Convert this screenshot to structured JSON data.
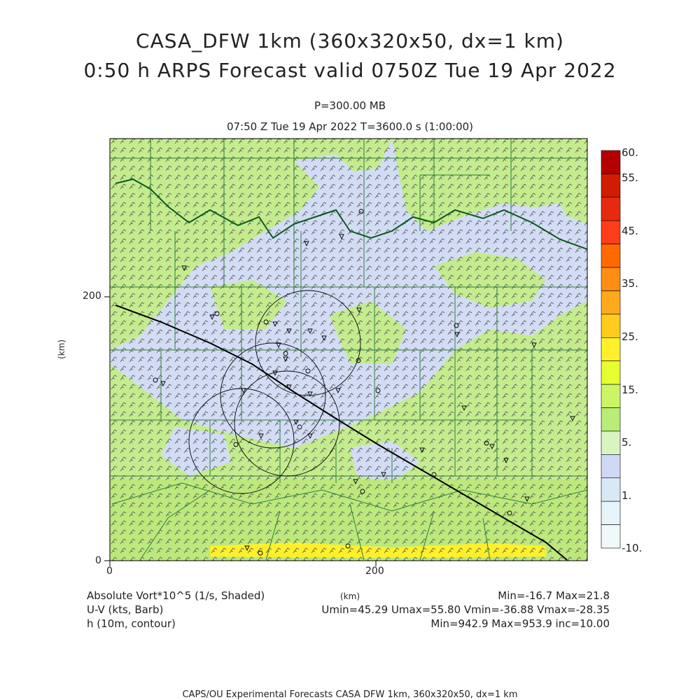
{
  "title": {
    "line1": "CASA_DFW 1km (360x320x50, dx=1 km)",
    "line2": "0:50 h ARPS Forecast valid 0750Z Tue 19 Apr 2022",
    "level": "P=300.00 MB",
    "time": "07:50 Z Tue 19 Apr 2022    T=3600.0 s (1:00:00)"
  },
  "axes": {
    "x_ticks": [
      {
        "value": 0,
        "label": "0"
      },
      {
        "value": 200,
        "label": "200"
      }
    ],
    "y_ticks": [
      {
        "value": 0,
        "label": "0"
      },
      {
        "value": 200,
        "label": "200"
      }
    ],
    "x_unit": "(km)",
    "y_unit": "(km)",
    "x_range": [
      0,
      360
    ],
    "y_range": [
      0,
      320
    ]
  },
  "colorbar": {
    "labels": [
      "60.",
      "55.",
      "45.",
      "35.",
      "25.",
      "15.",
      "5.",
      "1.",
      "-10."
    ],
    "colors": [
      "#b30000",
      "#d01c00",
      "#e62a10",
      "#ff3d1a",
      "#ff6a00",
      "#ff8c14",
      "#ffaa1e",
      "#ffcc1e",
      "#fff02a",
      "#e6ff2e",
      "#ccf566",
      "#b8ed78",
      "#d8f5c0",
      "#cfd8f4",
      "#d9e8f5",
      "#e6f3f8",
      "#f0f8fa"
    ]
  },
  "legend": {
    "var1": "Absolute Vort*10^5 (1/s, Shaded)",
    "var2": "U-V (kts, Barb)",
    "var3": "h (10m, contour)",
    "minmax1": "Min=-16.7 Max=21.8",
    "minmax2": "Umin=45.29 Umax=55.80 Vmin=-36.88 Vmax=-28.35",
    "minmax3": "Min=942.9 Max=953.9 inc=10.00",
    "km": "(km)"
  },
  "footer": "CAPS/OU Experimental Forecasts  CASA DFW 1km, 360x320x50, dx=1 km",
  "map_colors": {
    "field_green": "#c4ec8e",
    "field_lavender": "#d3dcf5",
    "field_yellow": "#fff02a",
    "county_line": "#2e7d3a",
    "river": "#0a5a1e",
    "barb": "#555555"
  }
}
